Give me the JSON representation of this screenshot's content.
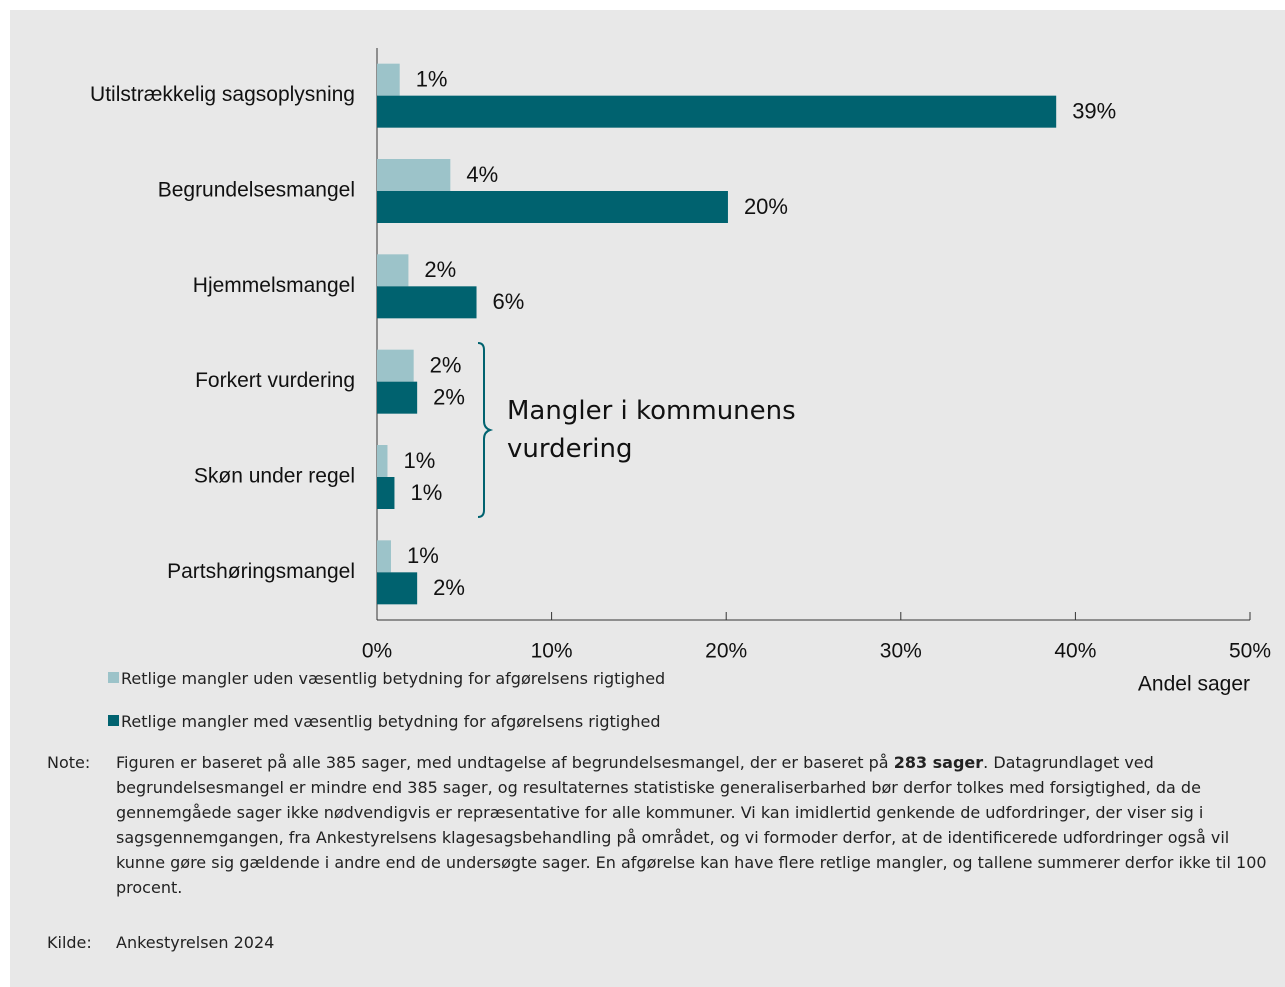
{
  "chart_data": {
    "type": "bar",
    "categories": [
      "Utilstrækkelig sagsoplysning",
      "Begrundelsesmangel",
      "Hjemmelsmangel",
      "Forkert vurdering",
      "Skøn under regel",
      "Partshøringsmangel"
    ],
    "series": [
      {
        "name": "Retlige mangler uden væsentlig betydning for afgørelsens rigtighed",
        "color": "#9cc3c9",
        "values": [
          1.3,
          4.2,
          1.8,
          2.1,
          0.6,
          0.8
        ],
        "value_labels": [
          "1%",
          "4%",
          "2%",
          "2%",
          "1%",
          "1%"
        ]
      },
      {
        "name": "Retlige mangler med væsentlig betydning for afgørelsens rigtighed",
        "color": "#00626f",
        "values": [
          38.9,
          20.1,
          5.7,
          2.3,
          1.0,
          2.3
        ],
        "value_labels": [
          "39%",
          "20%",
          "6%",
          "2%",
          "1%",
          "2%"
        ]
      }
    ],
    "xlim": [
      0,
      50
    ],
    "xticks": [
      {
        "value": 0,
        "label": "0%"
      },
      {
        "value": 10,
        "label": "10%"
      },
      {
        "value": 20,
        "label": "20%"
      },
      {
        "value": 30,
        "label": "30%"
      },
      {
        "value": 40,
        "label": "40%"
      },
      {
        "value": 50,
        "label": "50%"
      }
    ],
    "xlabel": "Andel sager",
    "annotation": "Mangler i kommunens vurdering",
    "legend": "bottom-left"
  },
  "note": {
    "label": "Note:",
    "text_before": "Figuren er baseret på alle 385 sager, med undtagelse af begrundelsesmangel, der er baseret på ",
    "text_bold": "283 sager",
    "text_after": ". Datagrundlaget ved begrundelsesmangel er mindre end 385 sager, og resultaternes statistiske generaliserbarhed bør derfor tolkes med forsigtighed, da de gennemgåede sager ikke nødvendigvis er repræsentative for alle kommuner. Vi kan imidlertid genkende de udfordringer, der viser sig i sagsgennemgangen, fra Ankestyrelsens klagesagsbehandling på området, og vi formoder derfor, at de identificerede udfordringer også vil kunne gøre sig gældende i andre end de undersøgte sager. En afgørelse kan have flere retlige mangler, og tallene summerer derfor ikke til 100 procent."
  },
  "source": {
    "label": "Kilde:",
    "text": "Ankestyrelsen 2024"
  }
}
